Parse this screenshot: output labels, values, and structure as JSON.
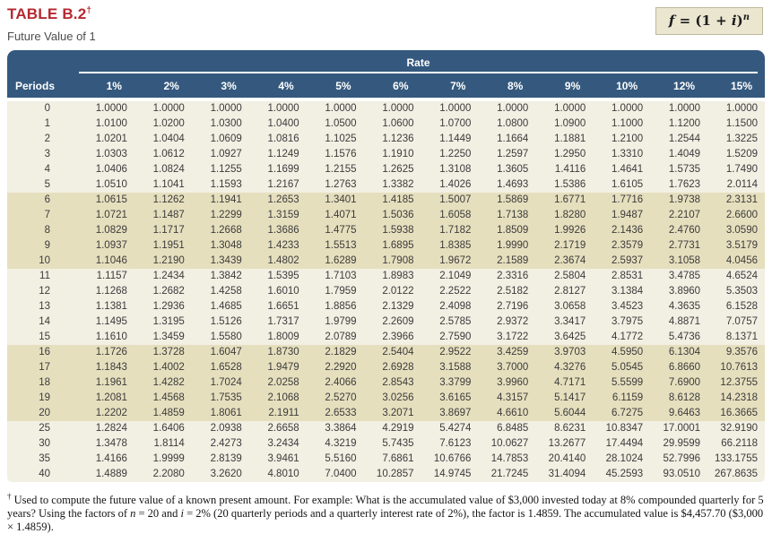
{
  "header": {
    "title": "TABLE B.2",
    "dagger": "†",
    "subtitle": "Future Value of 1"
  },
  "formula": {
    "f": "f",
    "eq": " = ",
    "open": "(1 + ",
    "i": "i",
    "close": ")",
    "exp": "n"
  },
  "colors": {
    "title_red": "#B42A30",
    "header_blue": "#35597E",
    "band_light": "#F2EFE3",
    "band_dark": "#E6DFBE",
    "formula_box_bg": "#EAE6D0"
  },
  "table": {
    "group_header": "Rate",
    "periods_header": "Periods",
    "rate_headers": [
      "1%",
      "2%",
      "3%",
      "4%",
      "5%",
      "6%",
      "7%",
      "8%",
      "9%",
      "10%",
      "12%",
      "15%"
    ],
    "rows": [
      {
        "period": "0",
        "values": [
          "1.0000",
          "1.0000",
          "1.0000",
          "1.0000",
          "1.0000",
          "1.0000",
          "1.0000",
          "1.0000",
          "1.0000",
          "1.0000",
          "1.0000",
          "1.0000"
        ]
      },
      {
        "period": "1",
        "values": [
          "1.0100",
          "1.0200",
          "1.0300",
          "1.0400",
          "1.0500",
          "1.0600",
          "1.0700",
          "1.0800",
          "1.0900",
          "1.1000",
          "1.1200",
          "1.1500"
        ]
      },
      {
        "period": "2",
        "values": [
          "1.0201",
          "1.0404",
          "1.0609",
          "1.0816",
          "1.1025",
          "1.1236",
          "1.1449",
          "1.1664",
          "1.1881",
          "1.2100",
          "1.2544",
          "1.3225"
        ]
      },
      {
        "period": "3",
        "values": [
          "1.0303",
          "1.0612",
          "1.0927",
          "1.1249",
          "1.1576",
          "1.1910",
          "1.2250",
          "1.2597",
          "1.2950",
          "1.3310",
          "1.4049",
          "1.5209"
        ]
      },
      {
        "period": "4",
        "values": [
          "1.0406",
          "1.0824",
          "1.1255",
          "1.1699",
          "1.2155",
          "1.2625",
          "1.3108",
          "1.3605",
          "1.4116",
          "1.4641",
          "1.5735",
          "1.7490"
        ]
      },
      {
        "period": "5",
        "values": [
          "1.0510",
          "1.1041",
          "1.1593",
          "1.2167",
          "1.2763",
          "1.3382",
          "1.4026",
          "1.4693",
          "1.5386",
          "1.6105",
          "1.7623",
          "2.0114"
        ]
      },
      {
        "period": "6",
        "values": [
          "1.0615",
          "1.1262",
          "1.1941",
          "1.2653",
          "1.3401",
          "1.4185",
          "1.5007",
          "1.5869",
          "1.6771",
          "1.7716",
          "1.9738",
          "2.3131"
        ]
      },
      {
        "period": "7",
        "values": [
          "1.0721",
          "1.1487",
          "1.2299",
          "1.3159",
          "1.4071",
          "1.5036",
          "1.6058",
          "1.7138",
          "1.8280",
          "1.9487",
          "2.2107",
          "2.6600"
        ]
      },
      {
        "period": "8",
        "values": [
          "1.0829",
          "1.1717",
          "1.2668",
          "1.3686",
          "1.4775",
          "1.5938",
          "1.7182",
          "1.8509",
          "1.9926",
          "2.1436",
          "2.4760",
          "3.0590"
        ]
      },
      {
        "period": "9",
        "values": [
          "1.0937",
          "1.1951",
          "1.3048",
          "1.4233",
          "1.5513",
          "1.6895",
          "1.8385",
          "1.9990",
          "2.1719",
          "2.3579",
          "2.7731",
          "3.5179"
        ]
      },
      {
        "period": "10",
        "values": [
          "1.1046",
          "1.2190",
          "1.3439",
          "1.4802",
          "1.6289",
          "1.7908",
          "1.9672",
          "2.1589",
          "2.3674",
          "2.5937",
          "3.1058",
          "4.0456"
        ]
      },
      {
        "period": "11",
        "values": [
          "1.1157",
          "1.2434",
          "1.3842",
          "1.5395",
          "1.7103",
          "1.8983",
          "2.1049",
          "2.3316",
          "2.5804",
          "2.8531",
          "3.4785",
          "4.6524"
        ]
      },
      {
        "period": "12",
        "values": [
          "1.1268",
          "1.2682",
          "1.4258",
          "1.6010",
          "1.7959",
          "2.0122",
          "2.2522",
          "2.5182",
          "2.8127",
          "3.1384",
          "3.8960",
          "5.3503"
        ]
      },
      {
        "period": "13",
        "values": [
          "1.1381",
          "1.2936",
          "1.4685",
          "1.6651",
          "1.8856",
          "2.1329",
          "2.4098",
          "2.7196",
          "3.0658",
          "3.4523",
          "4.3635",
          "6.1528"
        ]
      },
      {
        "period": "14",
        "values": [
          "1.1495",
          "1.3195",
          "1.5126",
          "1.7317",
          "1.9799",
          "2.2609",
          "2.5785",
          "2.9372",
          "3.3417",
          "3.7975",
          "4.8871",
          "7.0757"
        ]
      },
      {
        "period": "15",
        "values": [
          "1.1610",
          "1.3459",
          "1.5580",
          "1.8009",
          "2.0789",
          "2.3966",
          "2.7590",
          "3.1722",
          "3.6425",
          "4.1772",
          "5.4736",
          "8.1371"
        ]
      },
      {
        "period": "16",
        "values": [
          "1.1726",
          "1.3728",
          "1.6047",
          "1.8730",
          "2.1829",
          "2.5404",
          "2.9522",
          "3.4259",
          "3.9703",
          "4.5950",
          "6.1304",
          "9.3576"
        ]
      },
      {
        "period": "17",
        "values": [
          "1.1843",
          "1.4002",
          "1.6528",
          "1.9479",
          "2.2920",
          "2.6928",
          "3.1588",
          "3.7000",
          "4.3276",
          "5.0545",
          "6.8660",
          "10.7613"
        ]
      },
      {
        "period": "18",
        "values": [
          "1.1961",
          "1.4282",
          "1.7024",
          "2.0258",
          "2.4066",
          "2.8543",
          "3.3799",
          "3.9960",
          "4.7171",
          "5.5599",
          "7.6900",
          "12.3755"
        ]
      },
      {
        "period": "19",
        "values": [
          "1.2081",
          "1.4568",
          "1.7535",
          "2.1068",
          "2.5270",
          "3.0256",
          "3.6165",
          "4.3157",
          "5.1417",
          "6.1159",
          "8.6128",
          "14.2318"
        ]
      },
      {
        "period": "20",
        "values": [
          "1.2202",
          "1.4859",
          "1.8061",
          "2.1911",
          "2.6533",
          "3.2071",
          "3.8697",
          "4.6610",
          "5.6044",
          "6.7275",
          "9.6463",
          "16.3665"
        ]
      },
      {
        "period": "25",
        "values": [
          "1.2824",
          "1.6406",
          "2.0938",
          "2.6658",
          "3.3864",
          "4.2919",
          "5.4274",
          "6.8485",
          "8.6231",
          "10.8347",
          "17.0001",
          "32.9190"
        ]
      },
      {
        "period": "30",
        "values": [
          "1.3478",
          "1.8114",
          "2.4273",
          "3.2434",
          "4.3219",
          "5.7435",
          "7.6123",
          "10.0627",
          "13.2677",
          "17.4494",
          "29.9599",
          "66.2118"
        ]
      },
      {
        "period": "35",
        "values": [
          "1.4166",
          "1.9999",
          "2.8139",
          "3.9461",
          "5.5160",
          "7.6861",
          "10.6766",
          "14.7853",
          "20.4140",
          "28.1024",
          "52.7996",
          "133.1755"
        ]
      },
      {
        "period": "40",
        "values": [
          "1.4889",
          "2.2080",
          "3.2620",
          "4.8010",
          "7.0400",
          "10.2857",
          "14.9745",
          "21.7245",
          "31.4094",
          "45.2593",
          "93.0510",
          "267.8635"
        ]
      }
    ]
  },
  "footnote": {
    "dagger": "†",
    "part1": " Used to compute the future value of a known present amount. For example: What is the accumulated value of $3,000 invested today at 8% compounded quarterly for 5 years? Using the factors of ",
    "n_var": "n",
    "part2": " = 20 and ",
    "i_var": "i",
    "part3": " = 2% (20 quarterly periods and a quarterly interest rate of 2%), the factor is 1.4859. The accumulated value is $4,457.70 ($3,000 × 1.4859)."
  }
}
